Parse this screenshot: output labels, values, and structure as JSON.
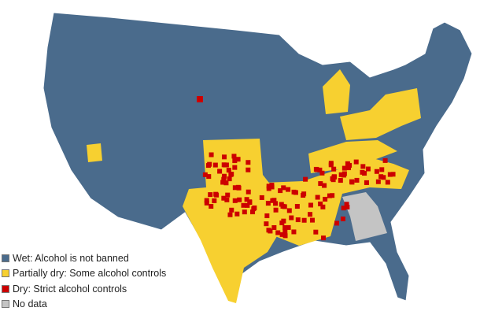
{
  "legend": {
    "items": [
      {
        "label": "Wet: Alcohol is not banned",
        "color": "#4a6b8c"
      },
      {
        "label": "Partially dry: Some alcohol controls",
        "color": "#f7d030"
      },
      {
        "label": "Dry: Strict alcohol controls",
        "color": "#cc0000"
      },
      {
        "label": "No data",
        "color": "#c4c4c4"
      }
    ]
  }
}
